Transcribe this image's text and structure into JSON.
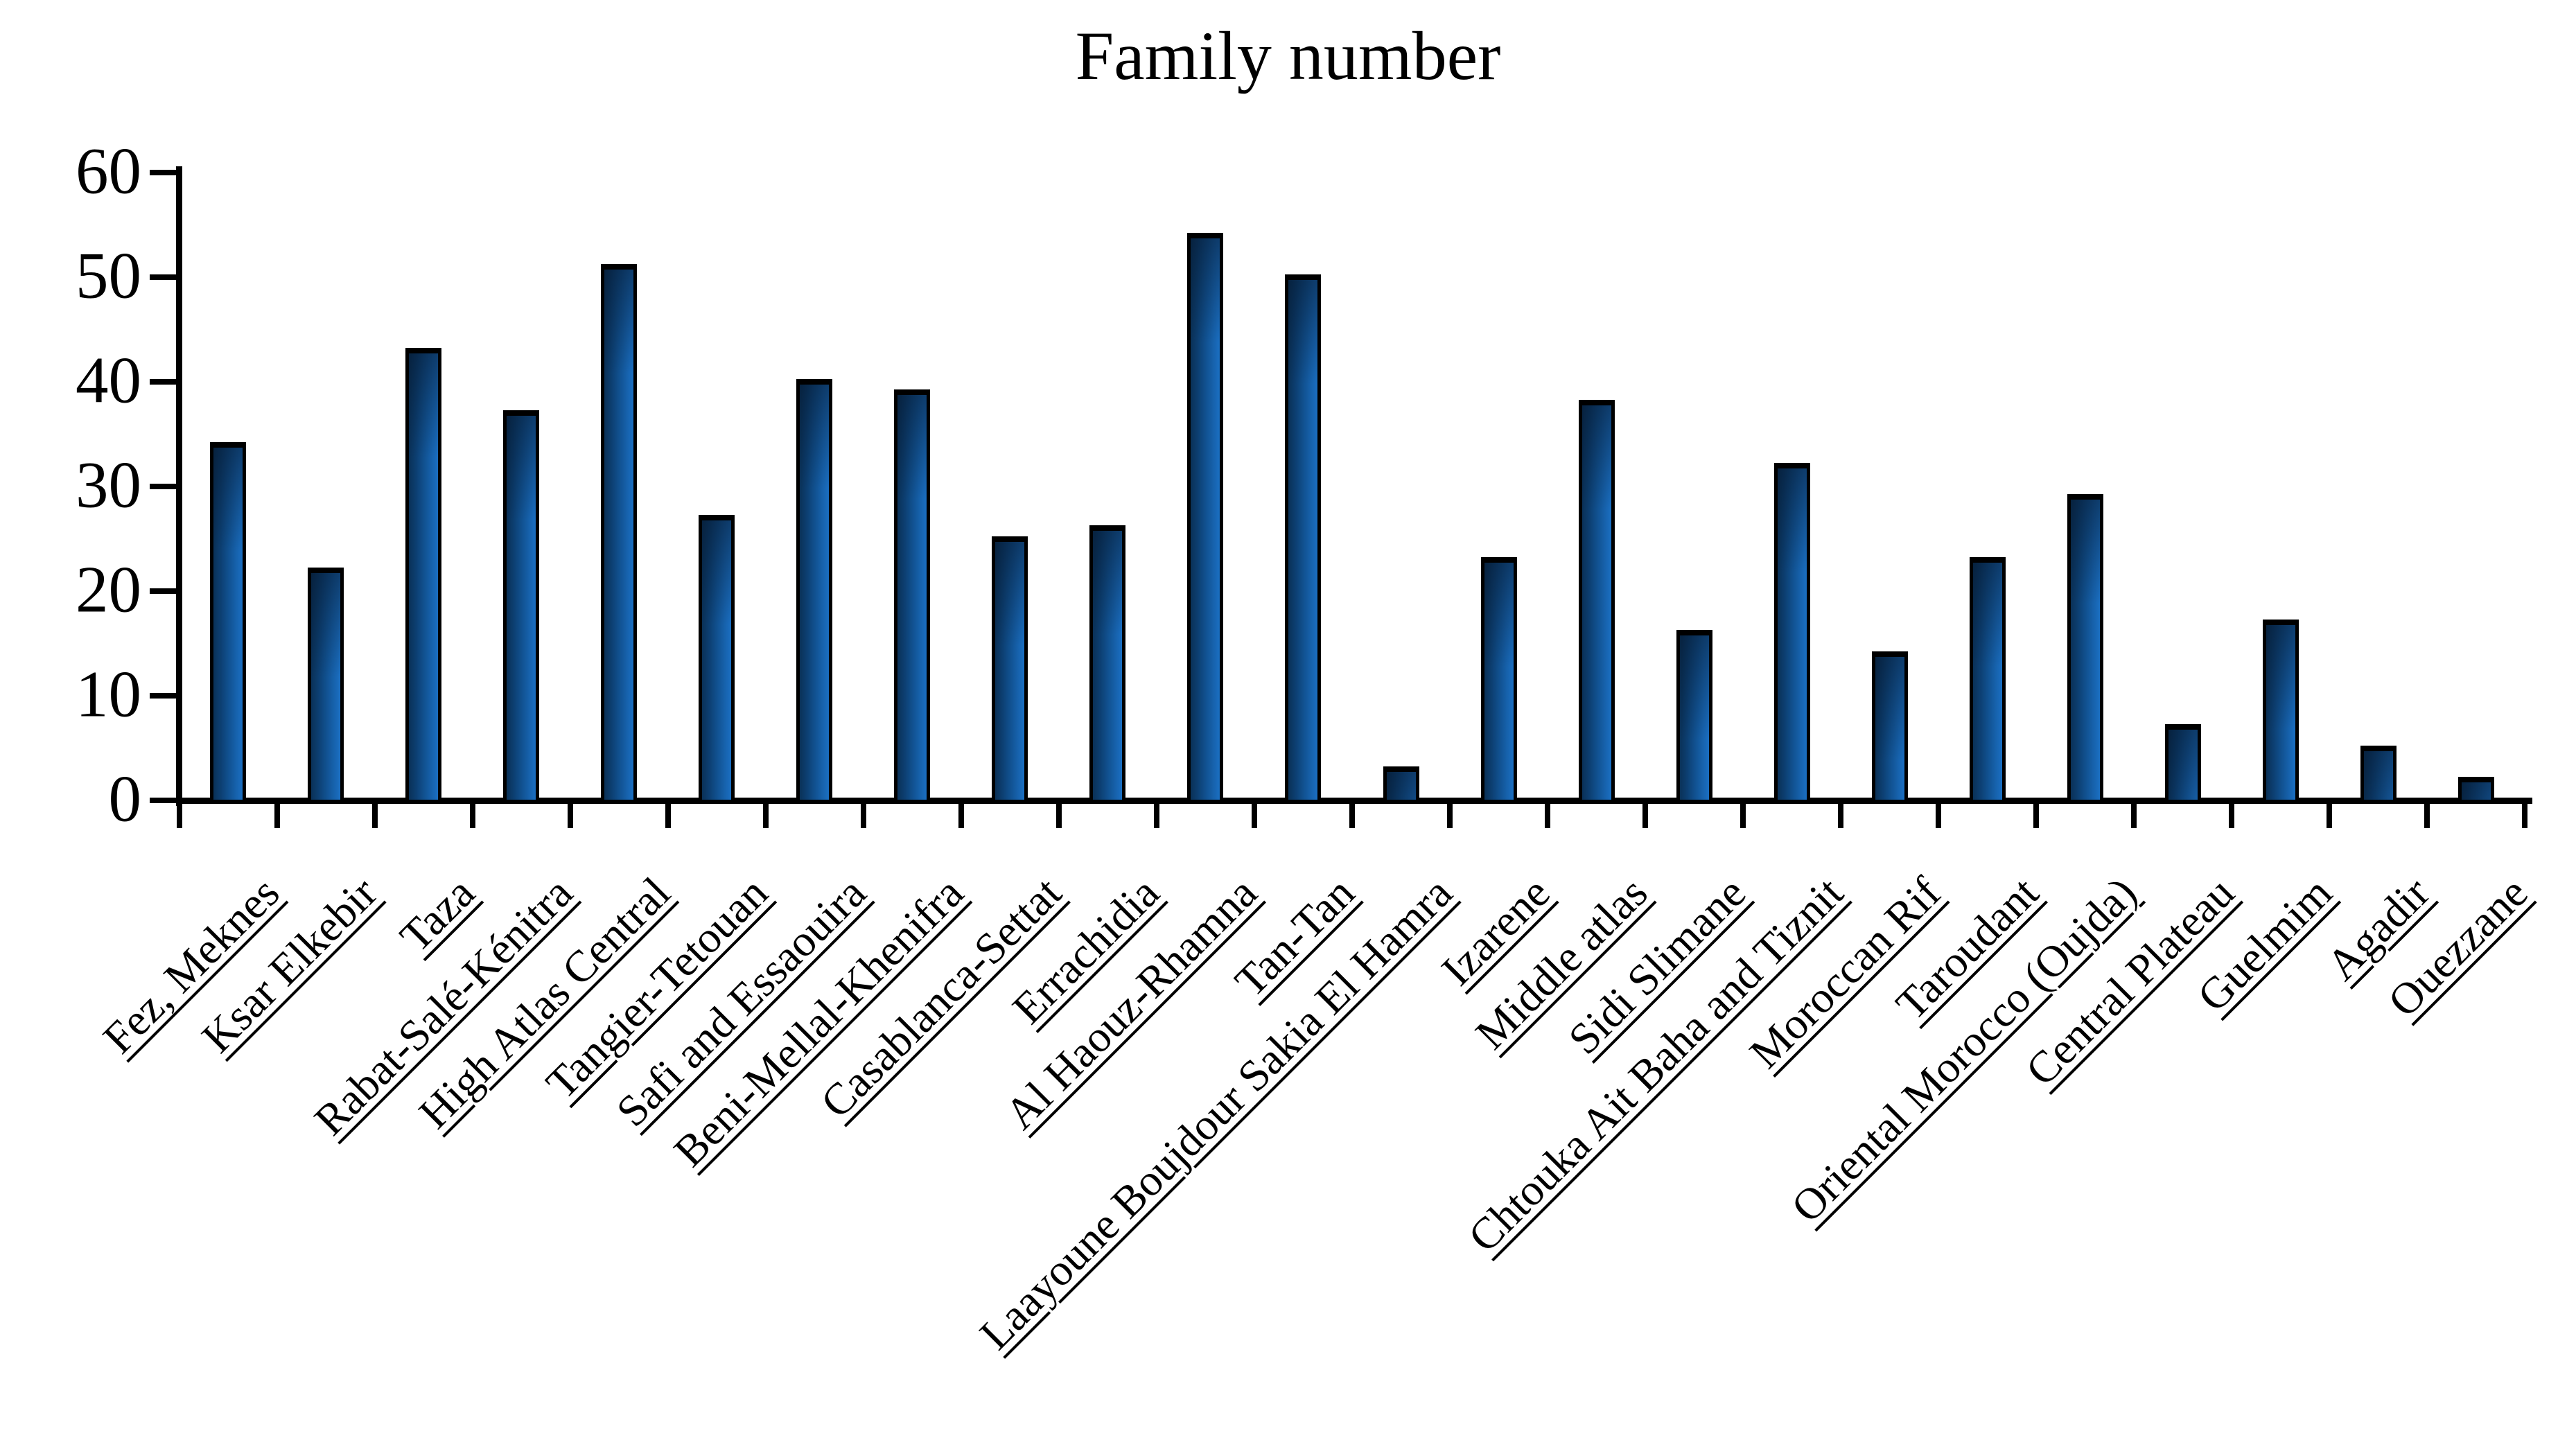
{
  "chart_data": {
    "type": "bar",
    "title": "Family number",
    "categories": [
      "Fez, Meknes",
      "Ksar Elkebir",
      "Taza",
      "Rabat-Salé-Kénitra",
      "High Atlas Central",
      "Tangier-Tetouan",
      "Safi and Essaouira",
      "Beni-Mellal-Khenifra",
      "Casablanca-Settat",
      "Errachidia",
      "Al Haouz-Rhamna",
      "Tan-Tan",
      "Laayoune Boujdour Sakia El Hamra",
      "Izarene",
      "Middle atlas",
      "Sidi Slimane",
      "Chtouka Ait Baha and Tiznit",
      "Moroccan Rif",
      "Taroudant",
      "Oriental Morocco (Oujda)",
      "Central Plateau",
      "Guelmim",
      "Agadir",
      "Ouezzane"
    ],
    "values": [
      34,
      22,
      43,
      37,
      51,
      27,
      40,
      39,
      25,
      26,
      54,
      50,
      3,
      23,
      38,
      16,
      32,
      14,
      23,
      29,
      7,
      17,
      5,
      2
    ],
    "xlabel": "",
    "ylabel": "",
    "ylim": [
      0,
      60
    ],
    "yticks": [
      0,
      10,
      20,
      30,
      40,
      50,
      60
    ],
    "y_tick_labels": [
      "0",
      "10",
      "20",
      "30",
      "40",
      "50",
      "60"
    ],
    "grid": false,
    "legend": null,
    "x_label_rotation_deg": 45,
    "colors": {
      "background": "#ffffff",
      "axis": "#000000",
      "text": "#000000",
      "bar_border": "#000000",
      "bar_gradient_dark": "#0a3157",
      "bar_gradient_light": "#1b6fc2"
    }
  }
}
